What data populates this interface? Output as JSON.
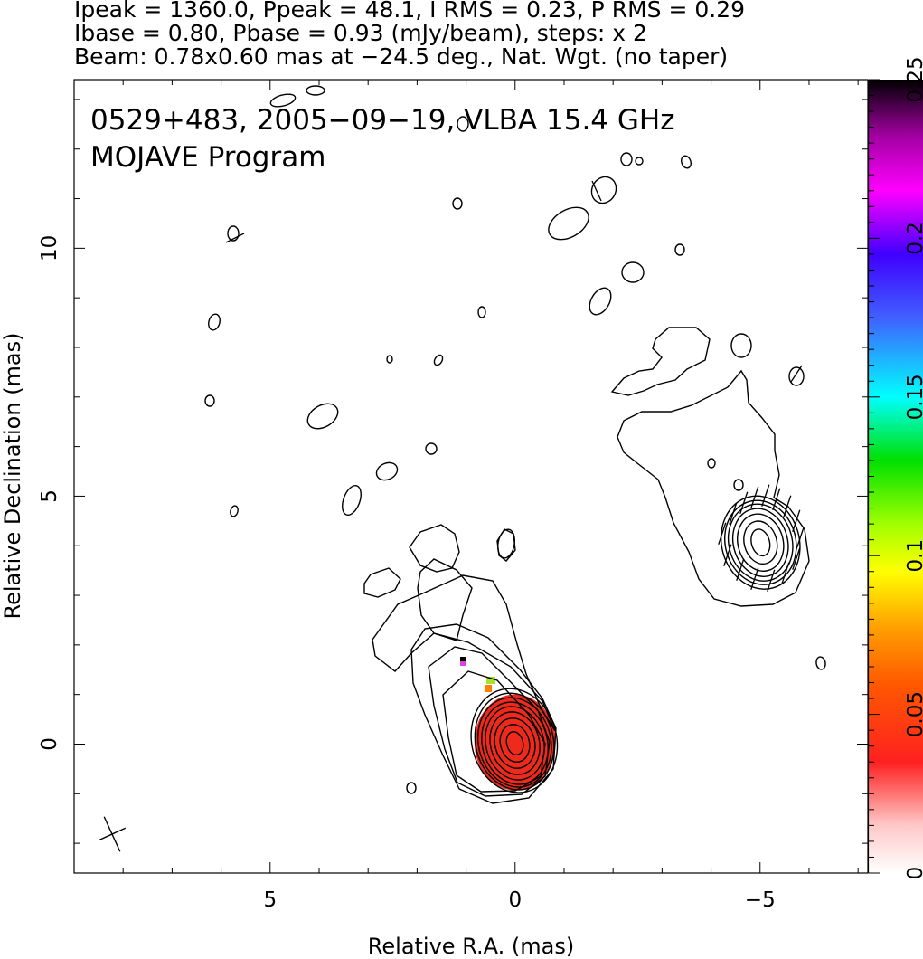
{
  "header": {
    "line1": "Ipeak = 1360.0, Ppeak = 48.1, I RMS = 0.23, P RMS = 0.29",
    "line2": "Ibase = 0.80, Pbase = 0.93 (mJy/beam), steps: x 2",
    "line3": "Beam: 0.78x0.60 mas at −24.5 deg., Nat. Wgt. (no taper)"
  },
  "plot": {
    "source_line": "0529+483, 2005−09−19, VLBA 15.4 GHz",
    "program_line": "MOJAVE Program"
  },
  "chart_data": {
    "type": "contour",
    "title": "0529+483, 2005−09−19, VLBA 15.4 GHz",
    "subtitle": "MOJAVE Program",
    "xlabel": "Relative R.A. (mas)",
    "ylabel": "Relative Declination (mas)",
    "xlim": [
      9.0,
      -7.2
    ],
    "ylim": [
      -2.6,
      13.4
    ],
    "x_ticks": [
      5,
      0,
      -5
    ],
    "x_tick_labels": [
      "5",
      "0",
      "−5"
    ],
    "y_ticks": [
      0,
      5,
      10
    ],
    "y_tick_labels": [
      "0",
      "5",
      "10"
    ],
    "colorbar": {
      "range": [
        0,
        0.25
      ],
      "ticks": [
        0,
        0.05,
        0.1,
        0.15,
        0.2,
        0.25
      ],
      "tick_labels": [
        "0",
        "0.05",
        "0.1",
        "0.15",
        "0.2",
        "0.25"
      ]
    },
    "components": [
      {
        "name": "core",
        "x": 0.0,
        "y": 0.0,
        "contour_levels": 10
      },
      {
        "name": "jet-knot",
        "x": -5.0,
        "y": 4.1,
        "contour_levels": 7
      }
    ],
    "beam": {
      "major_mas": 0.78,
      "minor_mas": 0.6,
      "pa_deg": -24.5
    },
    "colors": {
      "core_fill": "#ee2a1c",
      "contour": "#000000"
    }
  }
}
